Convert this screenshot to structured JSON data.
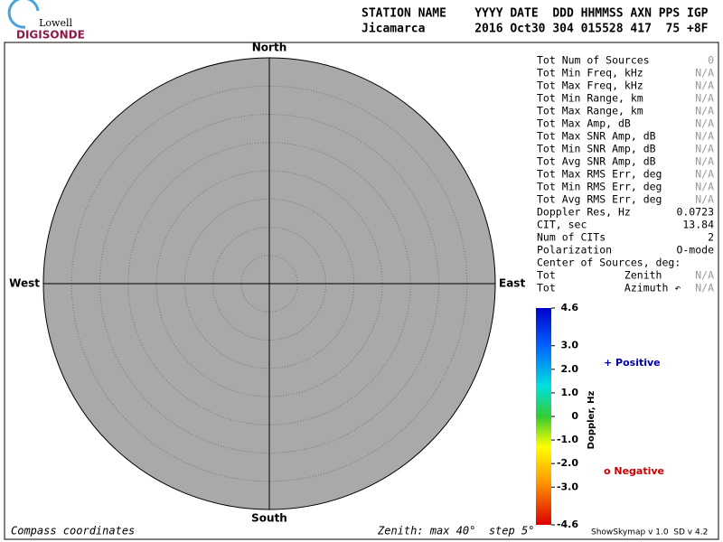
{
  "logo": {
    "line1": "Lowell",
    "line2": "DIGISONDE"
  },
  "header": {
    "columns": "STATION NAME    YYYY DATE  DDD HHMMSS AXN PPS IGP",
    "values": "Jicamarca       2016 Oct30 304 015528 417  75 +8F"
  },
  "compass": {
    "north": "North",
    "south": "South",
    "east": "East",
    "west": "West"
  },
  "stats": {
    "rows": [
      {
        "label": "Tot Num of Sources",
        "value": "0",
        "color": "#999999"
      },
      {
        "label": "Tot Min Freq, kHz",
        "value": "N/A",
        "color": "#999999"
      },
      {
        "label": "Tot Max Freq, kHz",
        "value": "N/A",
        "color": "#999999"
      },
      {
        "label": "Tot Min Range, km",
        "value": "N/A",
        "color": "#999999"
      },
      {
        "label": "Tot Max Range, km",
        "value": "N/A",
        "color": "#999999"
      },
      {
        "label": "Tot Max Amp, dB",
        "value": "N/A",
        "color": "#999999"
      },
      {
        "label": "Tot Max SNR Amp, dB",
        "value": "N/A",
        "color": "#999999"
      },
      {
        "label": "Tot Min SNR Amp, dB",
        "value": "N/A",
        "color": "#999999"
      },
      {
        "label": "Tot Avg SNR Amp, dB",
        "value": "N/A",
        "color": "#999999"
      },
      {
        "label": "Tot Max RMS Err, deg",
        "value": "N/A",
        "color": "#999999"
      },
      {
        "label": "Tot Min RMS Err, deg",
        "value": "N/A",
        "color": "#999999"
      },
      {
        "label": "Tot Avg RMS Err, deg",
        "value": "N/A",
        "color": "#999999"
      },
      {
        "label": "Doppler Res, Hz",
        "value": "0.0723",
        "color": "#000000"
      },
      {
        "label": "CIT, sec",
        "value": "13.84",
        "color": "#000000"
      },
      {
        "label": "Num of CITs",
        "value": "2",
        "color": "#000000"
      },
      {
        "label": "Polarization",
        "value": "O-mode",
        "color": "#000000"
      },
      {
        "label": "Center of Sources, deg:"
      },
      {
        "label": "Tot           Zenith",
        "value": "N/A",
        "color": "#999999"
      },
      {
        "label": "Tot           Azimuth ↶",
        "value": "N/A",
        "color": "#999999"
      }
    ]
  },
  "colorbar": {
    "title": "Doppler, Hz",
    "lim": [
      -4.6,
      4.6
    ],
    "ticks": [
      4.6,
      {
        "value": 3,
        "label": "3.0"
      },
      {
        "value": 2,
        "label": "2.0"
      },
      {
        "value": 1,
        "label": "1.0"
      },
      0,
      {
        "value": -1,
        "label": "-1.0"
      },
      {
        "value": -2,
        "label": "-2.0"
      },
      {
        "value": -3,
        "label": "-3.0"
      },
      -4.6
    ]
  },
  "legend": {
    "positive": "+ Positive",
    "negative": "o Negative"
  },
  "footer": {
    "left": "Compass coordinates",
    "center": "Zenith: max 40°  step 5°",
    "right": "ShowSkymap v 1.0  SD v 4.2"
  }
}
